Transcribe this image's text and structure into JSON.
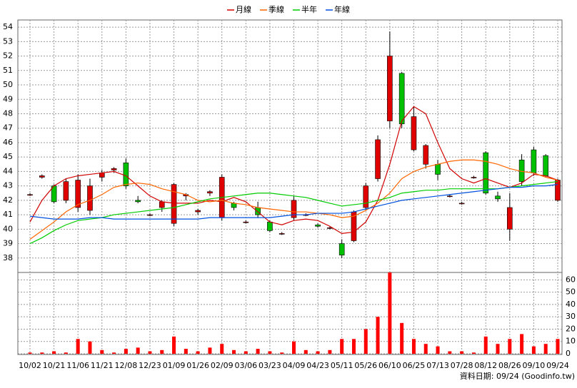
{
  "chart_data": [
    {
      "type": "candlestick",
      "categories": [
        "10/02",
        null,
        "10/21",
        null,
        "11/06",
        null,
        "11/21",
        null,
        "12/08",
        null,
        "12/23",
        null,
        "01/09",
        null,
        "01/26",
        null,
        "02/09",
        null,
        "03/06",
        null,
        "03/23",
        null,
        "04/09",
        null,
        "04/23",
        null,
        "05/11",
        null,
        "05/26",
        null,
        "06/10",
        null,
        "06/25",
        null,
        "07/13",
        null,
        "07/28",
        null,
        "08/12",
        null,
        "08/26",
        null,
        "09/10",
        null,
        "09/24"
      ],
      "open": [
        42.4,
        43.6,
        43.0,
        42.0,
        41.5,
        41.3,
        43.6,
        44.1,
        44.6,
        42.0,
        41.0,
        41.5,
        40.4,
        42.3,
        41.2,
        42.5,
        40.8,
        41.8,
        40.5,
        41.5,
        40.5,
        39.7,
        40.8,
        41.0,
        40.3,
        40.1,
        39.0,
        39.2,
        41.5,
        43.5,
        47.5,
        50.8,
        45.5,
        44.5,
        44.5,
        42.3,
        41.8,
        43.6,
        45.3,
        42.3,
        40.0,
        44.8,
        45.5,
        45.1,
        42.0
      ],
      "high": [
        42.5,
        43.8,
        43.1,
        43.5,
        43.8,
        43.5,
        44.1,
        44.3,
        44.9,
        42.3,
        41.1,
        42.0,
        43.2,
        42.5,
        41.4,
        42.7,
        43.8,
        41.9,
        40.6,
        41.9,
        40.6,
        39.8,
        42.3,
        41.1,
        40.4,
        40.2,
        39.3,
        41.3,
        43.2,
        46.5,
        53.7,
        50.9,
        48.5,
        45.9,
        44.8,
        42.4,
        41.9,
        43.7,
        45.4,
        42.6,
        42.5,
        45.2,
        45.7,
        45.2,
        43.5
      ],
      "low": [
        42.3,
        43.5,
        41.8,
        41.8,
        41.2,
        41.0,
        43.3,
        43.9,
        42.8,
        41.8,
        40.9,
        41.2,
        40.2,
        42.0,
        41.0,
        42.3,
        40.6,
        41.3,
        40.4,
        40.8,
        39.8,
        39.6,
        40.6,
        40.9,
        40.1,
        40.0,
        38.0,
        39.1,
        41.3,
        43.3,
        47.0,
        47.0,
        45.4,
        44.2,
        43.4,
        42.2,
        41.7,
        43.5,
        42.4,
        41.9,
        39.2,
        43.0,
        43.7,
        43.6,
        41.9
      ],
      "close": [
        42.4,
        43.7,
        41.9,
        43.3,
        43.4,
        43.0,
        43.9,
        44.2,
        43.0,
        41.9,
        41.0,
        41.9,
        43.1,
        42.4,
        41.3,
        42.6,
        43.6,
        41.5,
        40.5,
        41.0,
        39.9,
        39.7,
        42.0,
        41.0,
        40.2,
        40.1,
        38.2,
        41.2,
        43.0,
        46.2,
        52.0,
        47.3,
        47.8,
        45.8,
        43.8,
        42.3,
        41.8,
        43.6,
        42.5,
        42.1,
        41.5,
        43.3,
        43.9,
        43.7,
        43.4
      ],
      "up_color": "#e00000",
      "down_color": "#00c000",
      "ylim": [
        37,
        54.5
      ],
      "yticks": [
        38,
        39,
        40,
        41,
        42,
        43,
        44,
        45,
        46,
        47,
        48,
        49,
        50,
        51,
        52,
        53,
        54
      ],
      "grid": true,
      "series": [
        {
          "name": "月線",
          "color": "#d00000",
          "values": [
            40.5,
            42.0,
            43.0,
            43.5,
            43.7,
            43.8,
            43.9,
            44.0,
            43.7,
            43.0,
            42.3,
            41.9,
            41.8,
            41.8,
            41.8,
            42.0,
            41.9,
            42.2,
            41.9,
            41.2,
            40.5,
            40.3,
            40.6,
            40.7,
            40.6,
            40.2,
            39.7,
            39.8,
            40.5,
            42.0,
            44.5,
            47.5,
            48.5,
            48.0,
            46.0,
            44.2,
            43.5,
            43.2,
            43.5,
            43.2,
            42.9,
            43.2,
            43.8,
            43.7,
            43.4
          ]
        },
        {
          "name": "季線",
          "color": "#ff6600",
          "values": [
            39.3,
            39.9,
            40.5,
            41.2,
            41.7,
            42.0,
            42.4,
            42.9,
            43.1,
            43.2,
            43.1,
            42.8,
            42.6,
            42.4,
            42.0,
            41.9,
            42.0,
            41.8,
            41.7,
            41.5,
            41.4,
            41.3,
            41.2,
            41.2,
            41.1,
            41.0,
            40.8,
            40.9,
            41.3,
            41.8,
            42.5,
            43.5,
            44.0,
            44.3,
            44.5,
            44.7,
            44.8,
            44.8,
            44.7,
            44.5,
            44.2,
            44.0,
            43.9,
            43.6,
            43.4
          ]
        },
        {
          "name": "半年",
          "color": "#00cc00",
          "values": [
            39.0,
            39.4,
            39.9,
            40.3,
            40.6,
            40.7,
            40.8,
            41.0,
            41.1,
            41.2,
            41.3,
            41.4,
            41.5,
            41.7,
            41.9,
            42.1,
            42.2,
            42.3,
            42.4,
            42.5,
            42.5,
            42.4,
            42.3,
            42.2,
            42.0,
            41.8,
            41.6,
            41.7,
            41.8,
            42.0,
            42.2,
            42.5,
            42.6,
            42.7,
            42.7,
            42.8,
            42.8,
            42.8,
            42.8,
            42.8,
            42.9,
            43.0,
            43.1,
            43.2,
            43.3
          ]
        },
        {
          "name": "年線",
          "color": "#0050e0",
          "values": [
            40.9,
            40.8,
            40.7,
            40.7,
            40.7,
            40.8,
            40.8,
            40.7,
            40.7,
            40.7,
            40.7,
            40.7,
            40.7,
            40.7,
            40.7,
            40.8,
            40.8,
            40.8,
            40.8,
            40.8,
            40.8,
            40.9,
            41.0,
            41.0,
            41.1,
            41.1,
            41.1,
            41.2,
            41.4,
            41.6,
            41.8,
            42.0,
            42.1,
            42.2,
            42.3,
            42.4,
            42.5,
            42.6,
            42.7,
            42.8,
            42.9,
            42.9,
            43.0,
            43.0,
            43.1
          ]
        }
      ]
    },
    {
      "type": "bar",
      "color": "#ff0000",
      "values": [
        1,
        1,
        2,
        1,
        12,
        10,
        3,
        1,
        4,
        5,
        2,
        3,
        14,
        4,
        2,
        5,
        8,
        3,
        2,
        4,
        2,
        1,
        10,
        3,
        2,
        3,
        12,
        12,
        20,
        30,
        66,
        25,
        12,
        8,
        6,
        2,
        2,
        1,
        14,
        8,
        12,
        16,
        6,
        8,
        12
      ],
      "ylim": [
        0,
        66
      ],
      "yticks": [
        0,
        10,
        20,
        30,
        40,
        50,
        60
      ],
      "grid": true
    }
  ],
  "footer": "資料日期: 09/24 (Goodinfo.tw)"
}
